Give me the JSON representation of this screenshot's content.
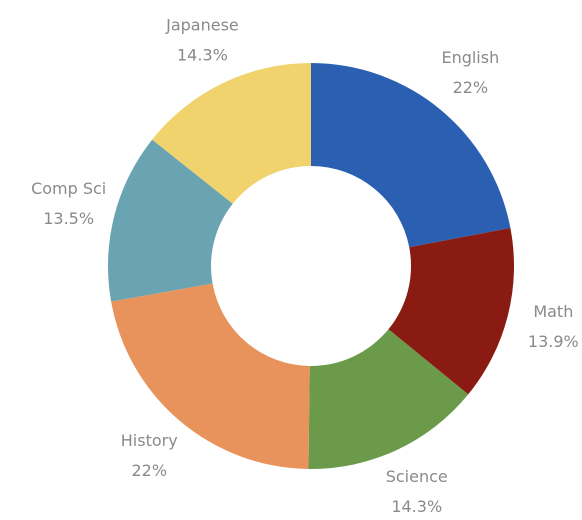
{
  "chart_data": {
    "type": "donut",
    "categories": [
      "English",
      "Math",
      "Science",
      "History",
      "Comp Sci",
      "Japanese"
    ],
    "values": [
      22,
      13.9,
      14.3,
      22,
      13.5,
      14.3
    ],
    "value_labels": [
      "22%",
      "13.9%",
      "14.3%",
      "22%",
      "13.5%",
      "14.3%"
    ],
    "colors": [
      "#2b5fb2",
      "#8a1b13",
      "#6b9a4b",
      "#e8935c",
      "#6aa3b1",
      "#f0d36c"
    ]
  }
}
